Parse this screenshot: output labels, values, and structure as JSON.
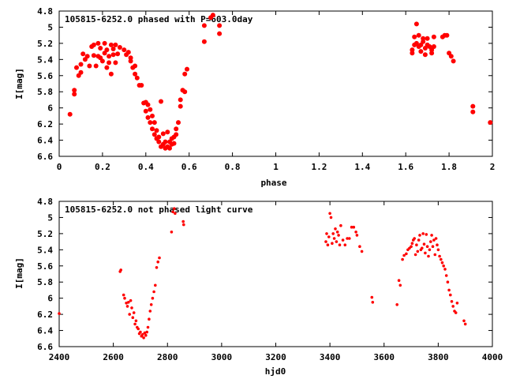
{
  "chart_data": [
    {
      "type": "scatter",
      "title": "105815-6252.0 phased with P=603.0day",
      "xlabel": "phase",
      "ylabel": "I[mag]",
      "xlim": [
        0,
        2
      ],
      "ylim": [
        6.6,
        4.8
      ],
      "y_inverted": true,
      "grid": false,
      "xticks": [
        "0",
        "0.2",
        "0.4",
        "0.6",
        "0.8",
        "1",
        "1.2",
        "1.4",
        "1.6",
        "1.8",
        "2"
      ],
      "yticks": [
        "4.8",
        "5",
        "5.2",
        "5.4",
        "5.6",
        "5.8",
        "6",
        "6.2",
        "6.4",
        "6.6"
      ],
      "series": [
        {
          "color": "#ff0000",
          "marker": "filled-circle",
          "x": [
            0.05,
            0.07,
            0.07,
            0.08,
            0.09,
            0.1,
            0.1,
            0.11,
            0.12,
            0.13,
            0.14,
            0.15,
            0.16,
            0.16,
            0.17,
            0.18,
            0.18,
            0.19,
            0.19,
            0.2,
            0.21,
            0.21,
            0.22,
            0.22,
            0.23,
            0.23,
            0.24,
            0.24,
            0.25,
            0.25,
            0.26,
            0.26,
            0.27,
            0.28,
            0.3,
            0.31,
            0.32,
            0.33,
            0.33,
            0.34,
            0.35,
            0.35,
            0.36,
            0.37,
            0.38,
            0.39,
            0.4,
            0.4,
            0.41,
            0.41,
            0.42,
            0.42,
            0.43,
            0.43,
            0.44,
            0.44,
            0.45,
            0.45,
            0.46,
            0.46,
            0.47,
            0.47,
            0.48,
            0.48,
            0.49,
            0.49,
            0.5,
            0.5,
            0.51,
            0.51,
            0.52,
            0.52,
            0.53,
            0.53,
            0.54,
            0.54,
            0.55,
            0.56,
            0.56,
            0.57,
            0.58,
            0.58,
            0.59,
            0.67,
            0.67,
            0.7,
            0.71,
            0.74,
            0.74,
            1.63,
            1.63,
            1.64,
            1.64,
            1.65,
            1.65,
            1.66,
            1.66,
            1.67,
            1.67,
            1.68,
            1.68,
            1.69,
            1.69,
            1.7,
            1.7,
            1.71,
            1.72,
            1.72,
            1.73,
            1.73,
            1.77,
            1.78,
            1.79,
            1.8,
            1.81,
            1.82,
            1.91,
            1.91,
            1.99
          ],
          "y": [
            6.08,
            5.78,
            5.83,
            5.5,
            5.6,
            5.56,
            5.46,
            5.33,
            5.4,
            5.36,
            5.48,
            5.24,
            5.35,
            5.22,
            5.48,
            5.36,
            5.2,
            5.38,
            5.26,
            5.42,
            5.32,
            5.2,
            5.5,
            5.28,
            5.36,
            5.44,
            5.22,
            5.58,
            5.34,
            5.27,
            5.44,
            5.22,
            5.33,
            5.25,
            5.28,
            5.34,
            5.31,
            5.42,
            5.38,
            5.5,
            5.48,
            5.58,
            5.63,
            5.72,
            5.72,
            5.94,
            5.93,
            6.04,
            5.96,
            6.12,
            6.02,
            6.18,
            6.1,
            6.26,
            6.18,
            6.33,
            6.28,
            6.38,
            6.42,
            6.36,
            5.92,
            6.48,
            6.32,
            6.45,
            6.42,
            6.5,
            6.48,
            6.3,
            6.42,
            6.5,
            6.45,
            6.38,
            6.44,
            6.36,
            6.33,
            6.26,
            6.18,
            5.98,
            5.9,
            5.78,
            5.8,
            5.58,
            5.52,
            4.98,
            5.18,
            4.88,
            4.85,
            4.98,
            5.08,
            5.32,
            5.28,
            5.22,
            5.12,
            4.96,
            5.2,
            5.24,
            5.1,
            5.22,
            5.3,
            5.14,
            5.18,
            5.34,
            5.26,
            5.22,
            5.14,
            5.24,
            5.32,
            5.28,
            5.12,
            5.24,
            5.12,
            5.1,
            5.1,
            5.32,
            5.36,
            5.42,
            5.98,
            6.05,
            6.18
          ]
        }
      ]
    },
    {
      "type": "scatter",
      "title": "105815-6252.0 not phased light curve",
      "xlabel": "hjd0",
      "ylabel": "I[mag]",
      "xlim": [
        2400,
        4000
      ],
      "ylim": [
        6.6,
        4.8
      ],
      "y_inverted": true,
      "grid": false,
      "xticks": [
        "2400",
        "2600",
        "2800",
        "3000",
        "3200",
        "3400",
        "3600",
        "3800",
        "4000"
      ],
      "yticks": [
        "4.8",
        "5",
        "5.2",
        "5.4",
        "5.6",
        "5.8",
        "6",
        "6.2",
        "6.4",
        "6.6"
      ],
      "series": [
        {
          "color": "#ff0000",
          "marker": "small-dot",
          "x": [
            2400,
            2625,
            2628,
            2638,
            2642,
            2648,
            2652,
            2656,
            2660,
            2664,
            2668,
            2672,
            2676,
            2680,
            2684,
            2688,
            2692,
            2696,
            2700,
            2704,
            2708,
            2712,
            2716,
            2720,
            2724,
            2728,
            2732,
            2736,
            2740,
            2745,
            2750,
            2755,
            2760,
            2765,
            2770,
            2815,
            2820,
            2825,
            2828,
            2858,
            2860,
            3385,
            3388,
            3392,
            3396,
            3400,
            3404,
            3408,
            3412,
            3416,
            3420,
            3424,
            3428,
            3432,
            3436,
            3440,
            3448,
            3456,
            3464,
            3472,
            3480,
            3488,
            3496,
            3500,
            3510,
            3518,
            3555,
            3558,
            3648,
            3655,
            3660,
            3668,
            3674,
            3682,
            3688,
            3694,
            3700,
            3704,
            3708,
            3712,
            3716,
            3720,
            3724,
            3728,
            3732,
            3736,
            3740,
            3744,
            3748,
            3752,
            3756,
            3760,
            3764,
            3768,
            3772,
            3776,
            3780,
            3784,
            3788,
            3792,
            3796,
            3800,
            3805,
            3810,
            3815,
            3820,
            3825,
            3830,
            3835,
            3840,
            3845,
            3850,
            3855,
            3860,
            3865,
            3870,
            3895,
            3900
          ],
          "y": [
            6.19,
            5.67,
            5.65,
            5.96,
            6.0,
            6.06,
            6.1,
            6.05,
            6.2,
            6.03,
            6.12,
            6.24,
            6.18,
            6.32,
            6.28,
            6.36,
            6.38,
            6.44,
            6.42,
            6.47,
            6.45,
            6.49,
            6.43,
            6.46,
            6.42,
            6.36,
            6.26,
            6.16,
            6.08,
            6.0,
            5.92,
            5.84,
            5.62,
            5.55,
            5.5,
            5.18,
            4.93,
            4.89,
            4.95,
            5.05,
            5.09,
            5.3,
            5.2,
            5.34,
            5.24,
            4.95,
            5.0,
            5.32,
            5.2,
            5.26,
            5.14,
            5.3,
            5.18,
            5.22,
            5.34,
            5.1,
            5.28,
            5.34,
            5.26,
            5.26,
            5.12,
            5.12,
            5.18,
            5.22,
            5.36,
            5.42,
            5.99,
            6.05,
            6.08,
            5.78,
            5.84,
            5.52,
            5.47,
            5.45,
            5.4,
            5.38,
            5.36,
            5.32,
            5.28,
            5.26,
            5.46,
            5.34,
            5.42,
            5.28,
            5.22,
            5.4,
            5.38,
            5.2,
            5.33,
            5.44,
            5.21,
            5.36,
            5.48,
            5.4,
            5.3,
            5.22,
            5.36,
            5.28,
            5.46,
            5.26,
            5.34,
            5.4,
            5.48,
            5.52,
            5.56,
            5.6,
            5.64,
            5.72,
            5.8,
            5.9,
            5.96,
            6.04,
            6.1,
            6.16,
            6.18,
            6.06,
            6.28,
            6.32
          ]
        }
      ]
    }
  ]
}
